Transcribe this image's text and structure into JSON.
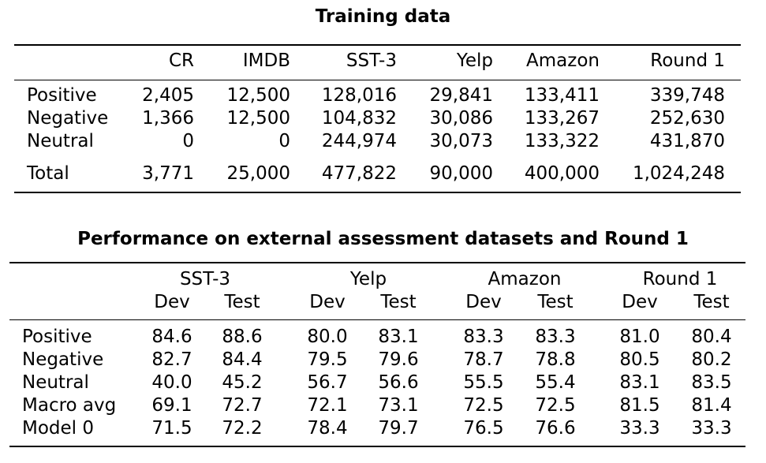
{
  "table1": {
    "title": "Training data",
    "columns": [
      "CR",
      "IMDB",
      "SST-3",
      "Yelp",
      "Amazon",
      "Round 1"
    ],
    "rows": [
      {
        "label": "Positive",
        "values": [
          "2,405",
          "12,500",
          "128,016",
          "29,841",
          "133,411",
          "339,748"
        ]
      },
      {
        "label": "Negative",
        "values": [
          "1,366",
          "12,500",
          "104,832",
          "30,086",
          "133,267",
          "252,630"
        ]
      },
      {
        "label": "Neutral",
        "values": [
          "0",
          "0",
          "244,974",
          "30,073",
          "133,322",
          "431,870"
        ]
      }
    ],
    "total": {
      "label": "Total",
      "values": [
        "3,771",
        "25,000",
        "477,822",
        "90,000",
        "400,000",
        "1,024,248"
      ]
    }
  },
  "table2": {
    "title": "Performance on external assessment datasets and Round 1",
    "groups": [
      "SST-3",
      "Yelp",
      "Amazon",
      "Round 1"
    ],
    "subcolumns": [
      "Dev",
      "Test"
    ],
    "rows": [
      {
        "label": "Positive",
        "values": [
          "84.6",
          "88.6",
          "80.0",
          "83.1",
          "83.3",
          "83.3",
          "81.0",
          "80.4"
        ]
      },
      {
        "label": "Negative",
        "values": [
          "82.7",
          "84.4",
          "79.5",
          "79.6",
          "78.7",
          "78.8",
          "80.5",
          "80.2"
        ]
      },
      {
        "label": "Neutral",
        "values": [
          "40.0",
          "45.2",
          "56.7",
          "56.6",
          "55.5",
          "55.4",
          "83.1",
          "83.5"
        ]
      },
      {
        "label": "Macro avg",
        "values": [
          "69.1",
          "72.7",
          "72.1",
          "73.1",
          "72.5",
          "72.5",
          "81.5",
          "81.4"
        ]
      },
      {
        "label": "Model 0",
        "values": [
          "71.5",
          "72.2",
          "78.4",
          "79.7",
          "76.5",
          "76.6",
          "33.3",
          "33.3"
        ]
      }
    ]
  }
}
